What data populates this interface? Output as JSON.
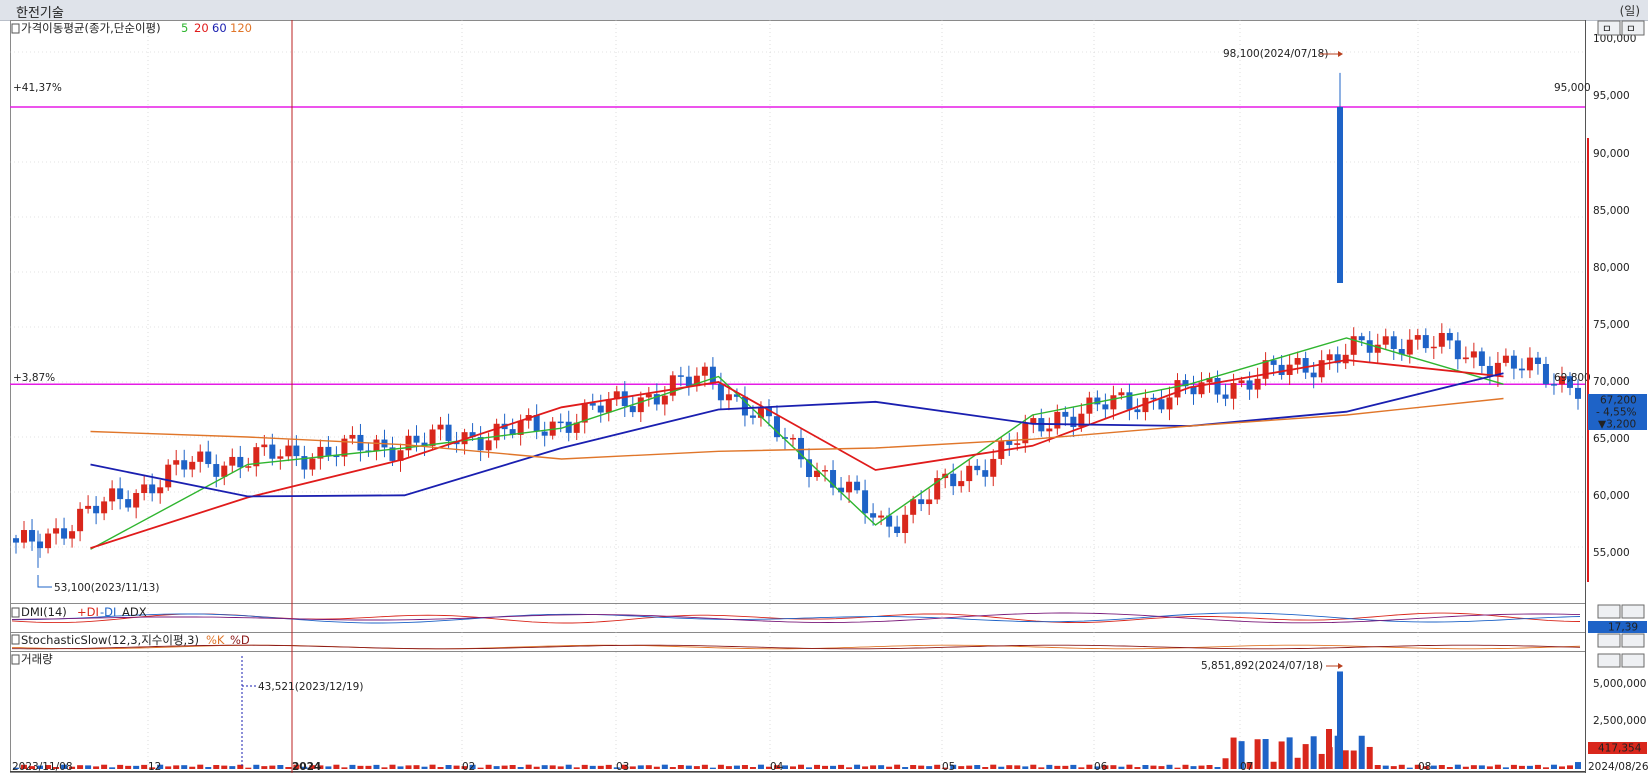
{
  "window": {
    "title": "한전기술",
    "unit_label": "(일)"
  },
  "colors": {
    "up": "#d9271c",
    "down": "#1e63c7",
    "ma5": "#2fb52f",
    "ma20": "#e01b1b",
    "ma60": "#1a1fb0",
    "ma120": "#e0762a",
    "hline": "#e51ce5",
    "grid": "#c8c8c8"
  },
  "panels": {
    "price": {
      "label": "가격이동평균(종가,단순이평)",
      "ma_labels": [
        "5",
        "20",
        "60",
        "120"
      ],
      "y_ticks": [
        "100,000",
        "95,000",
        "90,000",
        "85,000",
        "80,000",
        "75,000",
        "70,000",
        "65,000",
        "60,000",
        "55,000"
      ],
      "high_note": "98,100(2024/07/18)",
      "low_note": "53,100(2023/11/13)",
      "hline_upper": {
        "pct": "+41,37%",
        "value": "95,000"
      },
      "hline_lower": {
        "pct": "+3,87%",
        "value": "69,800"
      },
      "last_close": "67,200",
      "last_change_pct": "- 4,55%",
      "last_change": "▼3,200",
      "zoom_buttons": [
        "ㅁ",
        "ㅁ"
      ]
    },
    "dmi": {
      "label": "DMI(14)",
      "plus": "+DI",
      "minus": "-DI",
      "adx": "ADX",
      "value": "17,39"
    },
    "stoch": {
      "label": "StochasticSlow(12,3,지수이평,3)",
      "k": "%K",
      "d": "%D"
    },
    "volume": {
      "label": "거래량",
      "y_ticks": [
        "5,000,000",
        "2,500,000"
      ],
      "high_note": "5,851,892(2024/07/18)",
      "low_note": "43,521(2023/12/19)",
      "last_value": "417,354"
    }
  },
  "x_axis": {
    "labels": [
      "2023/11/08",
      "12",
      "2024",
      "02",
      "03",
      "04",
      "05",
      "06",
      "07",
      "08",
      "2024/08/26"
    ]
  },
  "chart_data": {
    "type": "candlestick",
    "x": [
      "2023-11",
      "2023-12",
      "2024-01",
      "2024-02",
      "2024-03",
      "2024-04",
      "2024-05",
      "2024-06",
      "2024-07",
      "2024-08"
    ],
    "series": [
      {
        "name": "5",
        "values": [
          54800,
          62500,
          64000,
          65800,
          70500,
          57000,
          67000,
          69800,
          74000,
          69800
        ]
      },
      {
        "name": "20",
        "values": [
          54900,
          59500,
          63000,
          67700,
          70000,
          62000,
          64200,
          69500,
          72000,
          70500
        ]
      },
      {
        "name": "60",
        "values": [
          62500,
          59600,
          59700,
          64000,
          67500,
          68200,
          66200,
          66000,
          67300,
          70800
        ]
      },
      {
        "name": "120",
        "values": [
          65500,
          65000,
          64300,
          63000,
          63700,
          64000,
          64800,
          66000,
          67000,
          68500
        ]
      }
    ],
    "high": {
      "value": 98100,
      "date": "2024/07/18"
    },
    "low": {
      "value": 53100,
      "date": "2023/11/13"
    },
    "last_close": 67200,
    "volume_high": {
      "value": 5851892,
      "date": "2024/07/18"
    },
    "volume_low": {
      "value": 43521,
      "date": "2023/12/19"
    },
    "volume_last": 417354,
    "dmi_last": 17.39,
    "ylim": [
      52000,
      102000
    ]
  }
}
